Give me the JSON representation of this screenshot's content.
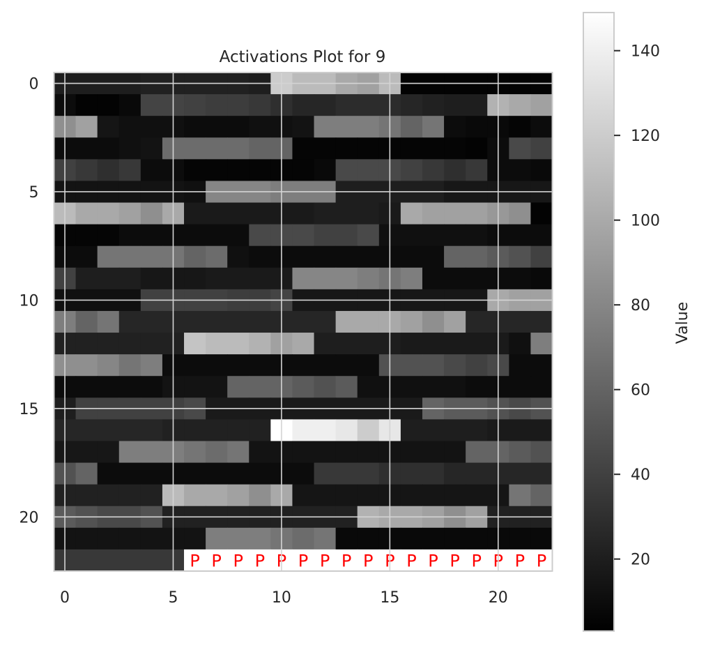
{
  "chart_data": {
    "type": "heatmap",
    "title": "Activations Plot for 9",
    "colorbar_label": "Value",
    "colormap": "gray",
    "grid": true,
    "x_ticks": [
      0,
      5,
      10,
      15,
      20
    ],
    "y_ticks": [
      0,
      5,
      10,
      15,
      20
    ],
    "colorbar_ticks": [
      20,
      40,
      60,
      80,
      100,
      120,
      140
    ],
    "value_range": [
      3,
      149
    ],
    "pad_token_label": "P",
    "pad_cells": [
      [
        22,
        6
      ],
      [
        22,
        7
      ],
      [
        22,
        8
      ],
      [
        22,
        9
      ],
      [
        22,
        10
      ],
      [
        22,
        11
      ],
      [
        22,
        12
      ],
      [
        22,
        13
      ],
      [
        22,
        14
      ],
      [
        22,
        15
      ],
      [
        22,
        16
      ],
      [
        22,
        17
      ],
      [
        22,
        18
      ],
      [
        22,
        19
      ],
      [
        22,
        20
      ],
      [
        22,
        21
      ],
      [
        22,
        22
      ]
    ],
    "values": [
      [
        20,
        20,
        20,
        20,
        22,
        22,
        22,
        22,
        22,
        20,
        120,
        110,
        110,
        100,
        95,
        110,
        5,
        5,
        5,
        5,
        5,
        5,
        5
      ],
      [
        10,
        5,
        5,
        8,
        42,
        42,
        40,
        38,
        38,
        35,
        30,
        25,
        25,
        28,
        28,
        28,
        25,
        22,
        20,
        20,
        105,
        100,
        95
      ],
      [
        85,
        95,
        15,
        12,
        12,
        12,
        10,
        10,
        10,
        12,
        12,
        14,
        75,
        75,
        75,
        70,
        60,
        70,
        10,
        8,
        8,
        6,
        10
      ],
      [
        10,
        10,
        10,
        12,
        14,
        65,
        65,
        65,
        65,
        60,
        60,
        6,
        6,
        6,
        6,
        6,
        6,
        6,
        6,
        5,
        10,
        45,
        40
      ],
      [
        40,
        35,
        30,
        35,
        10,
        10,
        6,
        6,
        6,
        6,
        6,
        6,
        8,
        45,
        45,
        45,
        40,
        35,
        30,
        35,
        10,
        10,
        8
      ],
      [
        14,
        14,
        14,
        14,
        14,
        14,
        12,
        80,
        80,
        80,
        75,
        75,
        75,
        20,
        20,
        20,
        20,
        20,
        16,
        16,
        16,
        16,
        16
      ],
      [
        110,
        100,
        100,
        95,
        85,
        100,
        18,
        18,
        18,
        18,
        18,
        18,
        20,
        20,
        20,
        18,
        100,
        95,
        95,
        95,
        90,
        85,
        5
      ],
      [
        6,
        6,
        6,
        10,
        10,
        10,
        10,
        10,
        10,
        45,
        45,
        45,
        40,
        40,
        45,
        12,
        12,
        12,
        12,
        12,
        10,
        10,
        10
      ],
      [
        10,
        10,
        70,
        70,
        70,
        70,
        60,
        65,
        12,
        10,
        10,
        10,
        10,
        10,
        10,
        10,
        10,
        10,
        60,
        60,
        55,
        50,
        40
      ],
      [
        40,
        20,
        20,
        20,
        16,
        16,
        16,
        18,
        18,
        18,
        18,
        80,
        80,
        80,
        75,
        70,
        75,
        10,
        10,
        10,
        10,
        10,
        8
      ],
      [
        12,
        12,
        12,
        12,
        40,
        40,
        40,
        40,
        38,
        38,
        42,
        16,
        16,
        16,
        16,
        16,
        16,
        16,
        16,
        16,
        100,
        95,
        95
      ],
      [
        75,
        60,
        70,
        25,
        25,
        25,
        25,
        25,
        25,
        25,
        25,
        25,
        25,
        100,
        100,
        100,
        95,
        85,
        95,
        25,
        25,
        25,
        25
      ],
      [
        22,
        22,
        22,
        22,
        22,
        22,
        115,
        110,
        110,
        105,
        95,
        100,
        20,
        20,
        20,
        20,
        18,
        18,
        18,
        18,
        18,
        12,
        75
      ],
      [
        85,
        85,
        80,
        70,
        75,
        10,
        10,
        10,
        10,
        10,
        10,
        10,
        10,
        10,
        10,
        50,
        50,
        50,
        45,
        40,
        45,
        10,
        10
      ],
      [
        10,
        10,
        10,
        10,
        10,
        14,
        14,
        14,
        60,
        60,
        60,
        55,
        50,
        55,
        12,
        12,
        12,
        12,
        12,
        10,
        10,
        10,
        10
      ],
      [
        20,
        40,
        40,
        40,
        40,
        40,
        45,
        18,
        18,
        18,
        18,
        18,
        18,
        18,
        18,
        18,
        18,
        60,
        55,
        55,
        50,
        45,
        50
      ],
      [
        25,
        25,
        25,
        25,
        25,
        22,
        22,
        22,
        22,
        22,
        149,
        140,
        140,
        135,
        120,
        135,
        20,
        20,
        20,
        20,
        18,
        18,
        18
      ],
      [
        16,
        16,
        16,
        75,
        75,
        75,
        70,
        65,
        70,
        14,
        14,
        14,
        14,
        14,
        14,
        14,
        14,
        14,
        14,
        60,
        60,
        55,
        50
      ],
      [
        50,
        60,
        10,
        10,
        10,
        10,
        10,
        10,
        10,
        10,
        10,
        10,
        35,
        35,
        35,
        30,
        30,
        30,
        25,
        25,
        25,
        25,
        25
      ],
      [
        22,
        22,
        22,
        22,
        22,
        110,
        100,
        100,
        95,
        85,
        100,
        15,
        15,
        15,
        15,
        15,
        15,
        15,
        15,
        15,
        15,
        70,
        60
      ],
      [
        55,
        50,
        45,
        45,
        50,
        22,
        22,
        22,
        22,
        22,
        22,
        22,
        22,
        22,
        105,
        100,
        100,
        95,
        85,
        95,
        22,
        22,
        22
      ],
      [
        14,
        14,
        14,
        14,
        14,
        14,
        14,
        75,
        75,
        75,
        70,
        65,
        70,
        8,
        8,
        8,
        8,
        8,
        8,
        8,
        8,
        8,
        8
      ],
      [
        35,
        35,
        35,
        35,
        35,
        35,
        35,
        25,
        25,
        25,
        25,
        25,
        25,
        25,
        25,
        25,
        25,
        25,
        25,
        25,
        25,
        25,
        25
      ]
    ]
  }
}
